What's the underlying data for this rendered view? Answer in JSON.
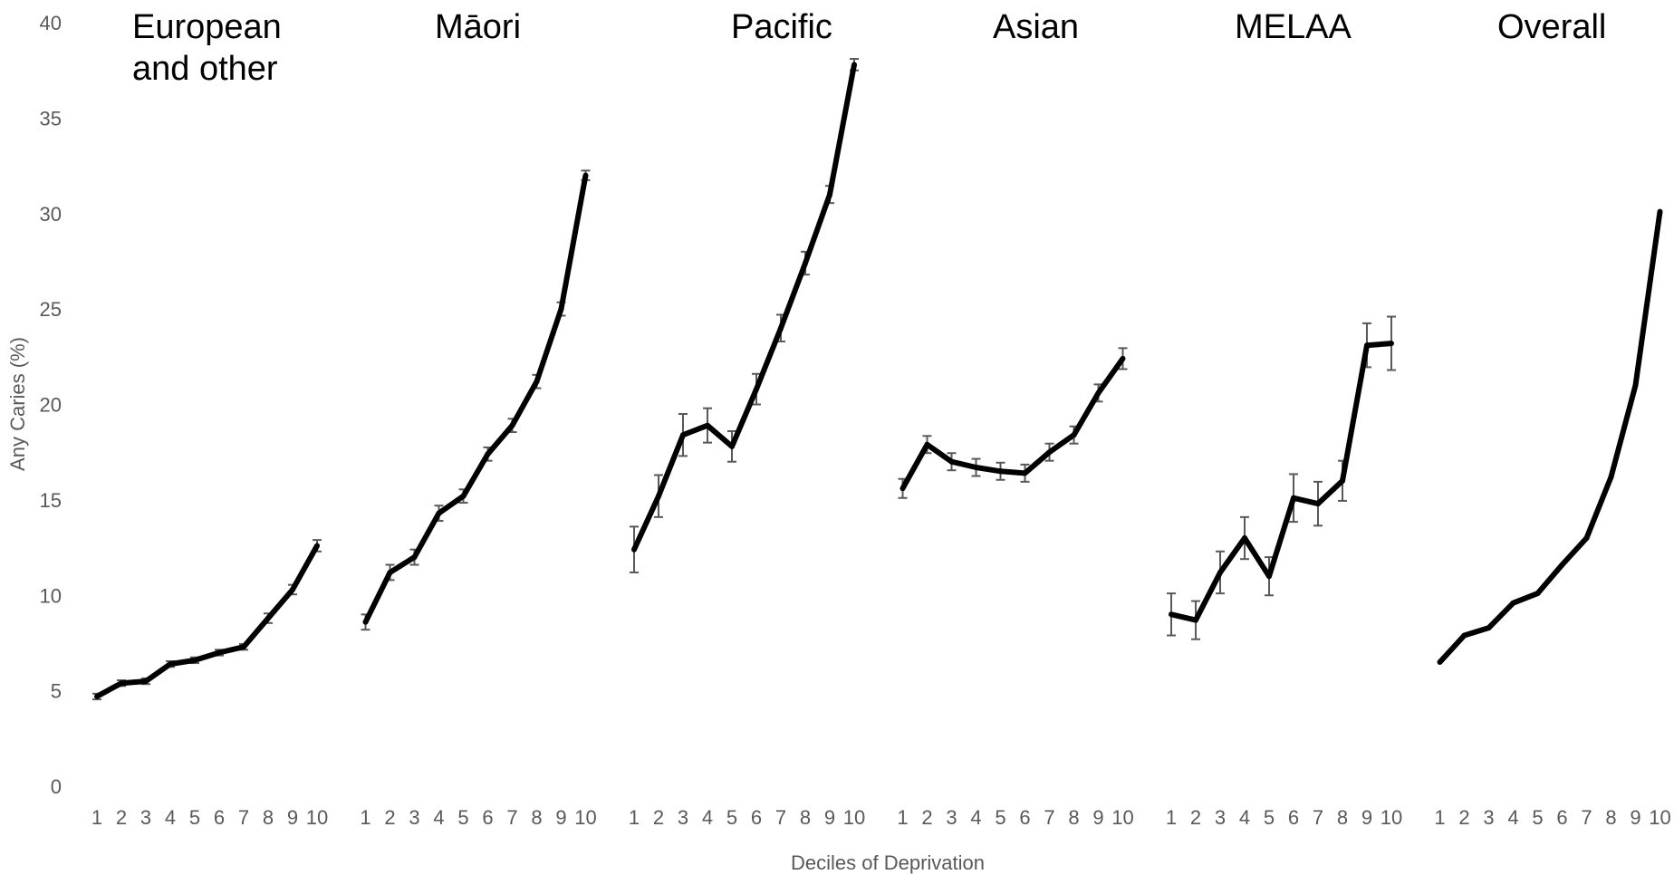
{
  "chart_data": {
    "type": "line",
    "ylabel": "Any Caries (%)",
    "xlabel": "Deciles of Deprivation",
    "ylim": [
      0,
      40
    ],
    "yticks": [
      "0",
      "5",
      "10",
      "15",
      "20",
      "25",
      "30",
      "35",
      "40"
    ],
    "categories": [
      "1",
      "2",
      "3",
      "4",
      "5",
      "6",
      "7",
      "8",
      "9",
      "10"
    ],
    "grid": false,
    "line_color": "#000000",
    "errorbar_color": "#595959",
    "series": [
      {
        "name": [
          "European",
          "and other"
        ],
        "values": [
          4.7,
          5.4,
          5.5,
          6.4,
          6.6,
          7.0,
          7.3,
          8.8,
          10.3,
          12.6
        ],
        "err": [
          0.15,
          0.15,
          0.15,
          0.15,
          0.15,
          0.15,
          0.15,
          0.25,
          0.25,
          0.3
        ]
      },
      {
        "name": [
          "Māori"
        ],
        "values": [
          8.6,
          11.2,
          12.0,
          14.3,
          15.2,
          17.4,
          18.9,
          21.2,
          25.0,
          32.0
        ],
        "err": [
          0.4,
          0.4,
          0.4,
          0.4,
          0.35,
          0.35,
          0.35,
          0.35,
          0.35,
          0.25
        ]
      },
      {
        "name": [
          "Pacific"
        ],
        "values": [
          12.4,
          15.2,
          18.4,
          18.9,
          17.8,
          20.8,
          24.0,
          27.4,
          31.0,
          37.8
        ],
        "err": [
          1.2,
          1.1,
          1.1,
          0.9,
          0.8,
          0.8,
          0.7,
          0.6,
          0.45,
          0.3
        ]
      },
      {
        "name": [
          "Asian"
        ],
        "values": [
          15.6,
          17.9,
          17.0,
          16.7,
          16.5,
          16.4,
          17.5,
          18.4,
          20.6,
          22.4
        ],
        "err": [
          0.5,
          0.45,
          0.45,
          0.45,
          0.45,
          0.45,
          0.45,
          0.45,
          0.45,
          0.55
        ]
      },
      {
        "name": [
          "MELAA"
        ],
        "values": [
          9.0,
          8.7,
          11.2,
          13.0,
          11.0,
          15.1,
          14.8,
          16.0,
          23.1,
          23.2
        ],
        "err": [
          1.1,
          1.0,
          1.1,
          1.1,
          1.0,
          1.25,
          1.15,
          1.05,
          1.15,
          1.4
        ]
      },
      {
        "name": [
          "Overall"
        ],
        "values": [
          6.5,
          7.9,
          8.3,
          9.6,
          10.1,
          11.6,
          13.0,
          16.2,
          21.0,
          30.1
        ],
        "err": []
      }
    ]
  }
}
